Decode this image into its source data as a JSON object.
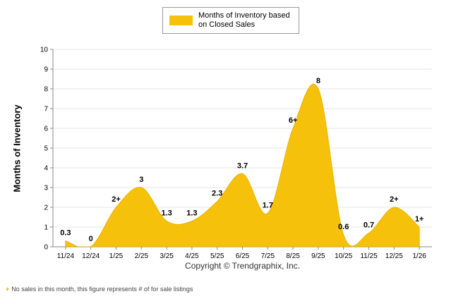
{
  "legend": {
    "line1": "Months of Inventory based",
    "line2": "on Closed Sales",
    "swatch_color": "#F6C10A"
  },
  "chart_data": {
    "type": "area",
    "series_name": "Months of Inventory based on Closed Sales",
    "categories": [
      "11/24",
      "12/24",
      "1/25",
      "2/25",
      "3/25",
      "4/25",
      "5/25",
      "6/25",
      "7/25",
      "8/25",
      "9/25",
      "10/25",
      "11/25",
      "12/25",
      "1/26"
    ],
    "values": [
      0.3,
      0,
      2,
      3,
      1.3,
      1.3,
      2.3,
      3.7,
      1.7,
      6,
      8,
      0.6,
      0.7,
      2,
      1
    ],
    "point_labels": [
      "0.3",
      "0",
      "2+",
      "3",
      "1.3",
      "1.3",
      "2.3",
      "3.7",
      "1.7",
      "6+",
      "8",
      "0.6",
      "0.7",
      "2+",
      "1+"
    ],
    "title": "",
    "xlabel": "",
    "ylabel": "Months of Inventory",
    "ylim": [
      0,
      10
    ],
    "y_ticks": [
      0,
      1,
      2,
      3,
      4,
      5,
      6,
      7,
      8,
      9,
      10
    ],
    "grid": true,
    "legend_position": "top",
    "fill_color": "#F6C10A",
    "stroke_color": "#E8B300"
  },
  "footer": {
    "copyright": "Copyright © Trendgraphix, Inc.",
    "footnote_plus": "+",
    "footnote_text": "No sales in this month, this figure represents # of for sale listings"
  }
}
